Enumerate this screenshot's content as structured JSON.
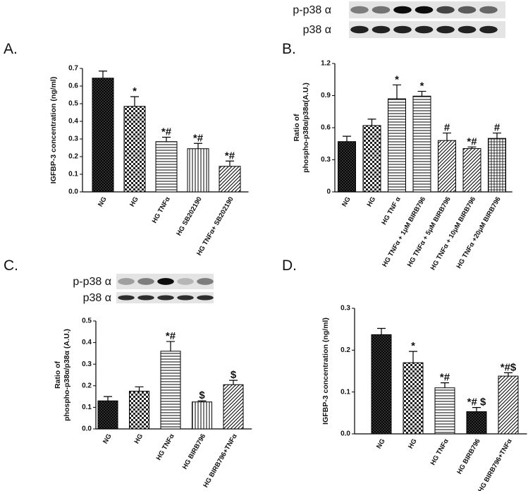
{
  "chart_data": [
    {
      "type": "bar",
      "panel_label": "A.",
      "y_label": [
        "IGFBP-3 concentration (ng/ml)"
      ],
      "categories": [
        "NG",
        "HG",
        "HG TNFα",
        "HG SB202190",
        "HG TNFα+ SB202190"
      ],
      "values": [
        0.645,
        0.485,
        0.285,
        0.245,
        0.145
      ],
      "errors": [
        0.04,
        0.055,
        0.025,
        0.03,
        0.03
      ],
      "annotations": [
        null,
        "*",
        "*#",
        "*#",
        "*#"
      ],
      "ylim": [
        0,
        0.7
      ],
      "yticks": [
        {
          "value": 0,
          "label": "0.0"
        },
        0.1,
        0.2,
        0.3,
        0.4,
        0.5,
        0.6,
        0.7
      ]
    },
    {
      "type": "bar",
      "panel_label": "B.",
      "y_label": [
        "Ratio of",
        "phospho-p38α/p38α(A.U.)"
      ],
      "blot_labels": [
        "p-p38 α",
        "p38 α"
      ],
      "categories": [
        "NG",
        "HG",
        "HG TNF α",
        "HG TNFα + 1μM BIRB796",
        "HG TNFα + 5μM BIRB796",
        "HG TNFα + 10μM BIRB796",
        "HG TNFα +20μM BIRB796"
      ],
      "values": [
        0.47,
        0.62,
        0.87,
        0.895,
        0.48,
        0.405,
        0.5
      ],
      "errors": [
        0.05,
        0.06,
        0.13,
        0.045,
        0.07,
        0.015,
        0.05
      ],
      "annotations": [
        null,
        null,
        "*",
        "*",
        "#",
        "*#",
        "#"
      ],
      "ylim": [
        0,
        1.2
      ],
      "yticks": [
        0,
        0.3,
        0.6,
        0.9,
        1.2
      ]
    },
    {
      "type": "bar",
      "panel_label": "C.",
      "y_label": [
        "Ratio of",
        "phospho-p38α/p38α (A.U.)"
      ],
      "blot_labels": [
        "p-p38 α",
        "p38 α"
      ],
      "categories": [
        "NG",
        "HG",
        "HG TNFα",
        "HG BIRB796",
        "HG BIRB796+TNFα"
      ],
      "values": [
        0.13,
        0.175,
        0.36,
        0.125,
        0.205
      ],
      "errors": [
        0.02,
        0.02,
        0.045,
        0.005,
        0.02
      ],
      "annotations": [
        null,
        null,
        "*#",
        "$",
        "$"
      ],
      "ylim": [
        0,
        0.5
      ],
      "yticks": [
        {
          "value": 0,
          "label": "0.0"
        },
        0.1,
        0.2,
        0.3,
        0.4,
        0.5
      ]
    },
    {
      "type": "bar",
      "panel_label": "D.",
      "y_label": [
        "IGFBP-3 concentration (ng/ml)"
      ],
      "categories": [
        "NG",
        "HG",
        "HG TNFα",
        "HG BIRB796",
        "HG BIRB796+TNFα"
      ],
      "values": [
        0.237,
        0.17,
        0.11,
        0.053,
        0.138
      ],
      "errors": [
        0.015,
        0.027,
        0.012,
        0.01,
        0.008
      ],
      "annotations": [
        null,
        "*",
        "*#",
        "*# $",
        "*#$"
      ],
      "ylim": [
        0,
        0.3
      ],
      "yticks": [
        {
          "value": 0,
          "label": "0.0"
        },
        0.1,
        0.2,
        0.3
      ]
    }
  ]
}
